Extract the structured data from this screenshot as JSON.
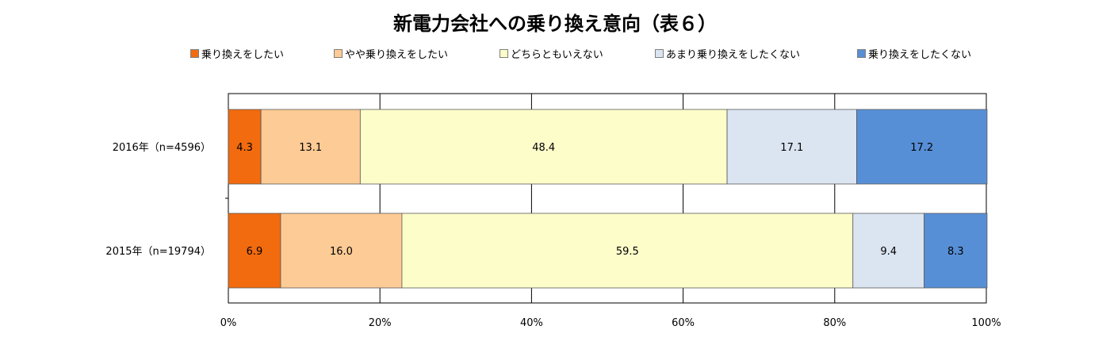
{
  "chart_data": {
    "type": "bar",
    "orientation": "horizontal",
    "stacked": true,
    "title": "新電力会社への乗り換え意向（表６）",
    "categories": [
      "2016年（n=4596）",
      "2015年（n=19794）"
    ],
    "series": [
      {
        "name": "乗り換えをしたい",
        "color": "#f26b0f",
        "values": [
          4.3,
          6.9
        ],
        "labels": [
          "4.3",
          "6.9"
        ]
      },
      {
        "name": "やや乗り換えをしたい",
        "color": "#fdcb95",
        "values": [
          13.1,
          16.0
        ],
        "labels": [
          "13.1",
          "16.0"
        ]
      },
      {
        "name": "どちらともいえない",
        "color": "#fdfdca",
        "values": [
          48.4,
          59.5
        ],
        "labels": [
          "48.4",
          "59.5"
        ]
      },
      {
        "name": "あまり乗り換えをしたくない",
        "color": "#dbe4f1",
        "values": [
          17.1,
          9.4
        ],
        "labels": [
          "17.1",
          "9.4"
        ]
      },
      {
        "name": "乗り換えをしたくない",
        "color": "#578fd6",
        "values": [
          17.2,
          8.3
        ],
        "labels": [
          "17.2",
          "8.3"
        ]
      }
    ],
    "xlim": [
      0,
      100
    ],
    "xticks": [
      0,
      20,
      40,
      60,
      80,
      100
    ],
    "xtick_labels": [
      "0%",
      "20%",
      "40%",
      "60%",
      "80%",
      "100%"
    ],
    "grid": true,
    "legend_position": "top"
  }
}
